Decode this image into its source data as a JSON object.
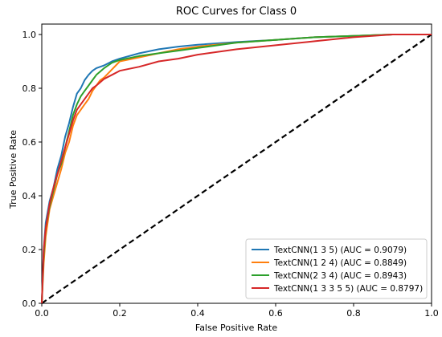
{
  "chart_data": {
    "type": "line",
    "title": "ROC Curves for Class 0",
    "xlabel": "False Positive Rate",
    "ylabel": "True Positive Rate",
    "xlim": [
      0,
      1
    ],
    "ylim": [
      0,
      1
    ],
    "xticks": [
      "0.0",
      "0.2",
      "0.4",
      "0.6",
      "0.8",
      "1.0"
    ],
    "yticks": [
      "0.0",
      "0.2",
      "0.4",
      "0.6",
      "0.8",
      "1.0"
    ],
    "grid": false,
    "legend_position": "lower-right",
    "diagonal": {
      "x": [
        0,
        1
      ],
      "y": [
        0,
        1
      ],
      "style": "dashed",
      "color": "#000000"
    },
    "series": [
      {
        "name": "TextCNN(1 3 5) (AUC = 0.9079)",
        "color": "#1f77b4",
        "x": [
          0,
          0.005,
          0.01,
          0.02,
          0.03,
          0.04,
          0.05,
          0.06,
          0.07,
          0.08,
          0.09,
          0.1,
          0.11,
          0.12,
          0.13,
          0.14,
          0.16,
          0.18,
          0.2,
          0.25,
          0.3,
          0.35,
          0.4,
          0.5,
          0.6,
          0.7,
          0.8,
          0.9,
          1.0
        ],
        "y": [
          0,
          0.2,
          0.3,
          0.38,
          0.43,
          0.5,
          0.55,
          0.62,
          0.67,
          0.73,
          0.78,
          0.8,
          0.83,
          0.85,
          0.865,
          0.875,
          0.885,
          0.9,
          0.91,
          0.93,
          0.945,
          0.955,
          0.962,
          0.972,
          0.98,
          0.99,
          0.995,
          1.0,
          1.0
        ]
      },
      {
        "name": "TextCNN(1 2 4) (AUC = 0.8849)",
        "color": "#ff7f0e",
        "x": [
          0,
          0.005,
          0.01,
          0.02,
          0.03,
          0.04,
          0.05,
          0.06,
          0.07,
          0.08,
          0.09,
          0.1,
          0.11,
          0.12,
          0.13,
          0.14,
          0.15,
          0.16,
          0.18,
          0.2,
          0.25,
          0.3,
          0.35,
          0.4,
          0.5,
          0.6,
          0.7,
          0.8,
          0.9,
          1.0
        ],
        "y": [
          0,
          0.15,
          0.25,
          0.35,
          0.4,
          0.45,
          0.5,
          0.56,
          0.6,
          0.66,
          0.7,
          0.72,
          0.74,
          0.76,
          0.79,
          0.81,
          0.83,
          0.84,
          0.87,
          0.9,
          0.915,
          0.93,
          0.945,
          0.955,
          0.97,
          0.98,
          0.99,
          0.995,
          1.0,
          1.0
        ]
      },
      {
        "name": "TextCNN(2 3 4) (AUC = 0.8943)",
        "color": "#2ca02c",
        "x": [
          0,
          0.005,
          0.01,
          0.02,
          0.03,
          0.04,
          0.05,
          0.06,
          0.07,
          0.08,
          0.09,
          0.1,
          0.11,
          0.12,
          0.13,
          0.14,
          0.16,
          0.18,
          0.2,
          0.25,
          0.3,
          0.35,
          0.4,
          0.5,
          0.6,
          0.7,
          0.8,
          0.9,
          1.0
        ],
        "y": [
          0,
          0.18,
          0.28,
          0.36,
          0.42,
          0.48,
          0.52,
          0.58,
          0.64,
          0.7,
          0.74,
          0.77,
          0.79,
          0.81,
          0.83,
          0.85,
          0.875,
          0.895,
          0.905,
          0.92,
          0.93,
          0.94,
          0.95,
          0.97,
          0.98,
          0.99,
          0.995,
          1.0,
          1.0
        ]
      },
      {
        "name": "TextCNN(1 3 3 5 5) (AUC = 0.8797)",
        "color": "#d62728",
        "x": [
          0,
          0.005,
          0.01,
          0.02,
          0.03,
          0.04,
          0.05,
          0.06,
          0.07,
          0.08,
          0.09,
          0.1,
          0.11,
          0.12,
          0.13,
          0.14,
          0.16,
          0.18,
          0.2,
          0.25,
          0.3,
          0.35,
          0.4,
          0.5,
          0.6,
          0.7,
          0.8,
          0.9,
          1.0
        ],
        "y": [
          0,
          0.2,
          0.28,
          0.37,
          0.43,
          0.48,
          0.53,
          0.58,
          0.63,
          0.68,
          0.72,
          0.74,
          0.76,
          0.78,
          0.8,
          0.81,
          0.835,
          0.85,
          0.865,
          0.88,
          0.9,
          0.91,
          0.925,
          0.945,
          0.96,
          0.975,
          0.99,
          1.0,
          1.0
        ]
      }
    ]
  }
}
